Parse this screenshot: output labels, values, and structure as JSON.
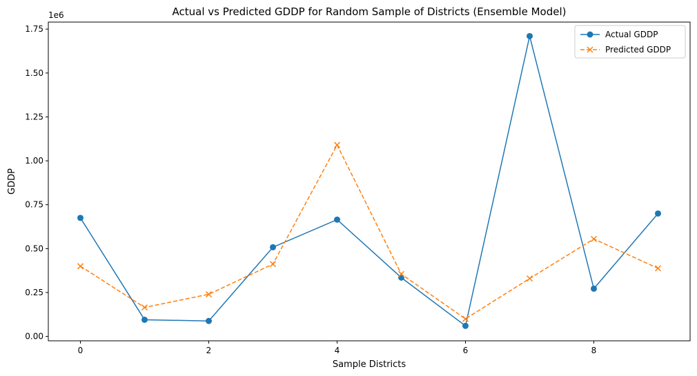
{
  "chart_data": {
    "type": "line",
    "title": "Actual vs Predicted GDDP for Random Sample of Districts (Ensemble Model)",
    "xlabel": "Sample Districts",
    "ylabel": "GDDP",
    "y_offset_label": "1e6",
    "x": [
      0,
      1,
      2,
      3,
      4,
      5,
      6,
      7,
      8,
      9
    ],
    "xlim": [
      -0.5,
      9.5
    ],
    "ylim": [
      -0.025,
      1.79
    ],
    "x_ticks": [
      0,
      2,
      4,
      6,
      8
    ],
    "x_tick_labels": [
      "0",
      "2",
      "4",
      "6",
      "8"
    ],
    "y_ticks": [
      0,
      0.25,
      0.5,
      0.75,
      1.0,
      1.25,
      1.5,
      1.75
    ],
    "y_tick_labels": [
      "0.00",
      "0.25",
      "0.50",
      "0.75",
      "1.00",
      "1.25",
      "1.50",
      "1.75"
    ],
    "grid": false,
    "legend_position": "top-right",
    "series": [
      {
        "name": "Actual GDDP",
        "color": "#1f77b4",
        "line_style": "solid",
        "marker": "circle",
        "values": [
          0.675,
          0.095,
          0.088,
          0.508,
          0.665,
          0.335,
          0.06,
          1.71,
          0.272,
          0.7
        ]
      },
      {
        "name": "Predicted GDDP",
        "color": "#ff7f0e",
        "line_style": "dashed",
        "marker": "x",
        "values": [
          0.4,
          0.165,
          0.24,
          0.412,
          1.09,
          0.355,
          0.1,
          0.33,
          0.555,
          0.388
        ]
      }
    ]
  }
}
